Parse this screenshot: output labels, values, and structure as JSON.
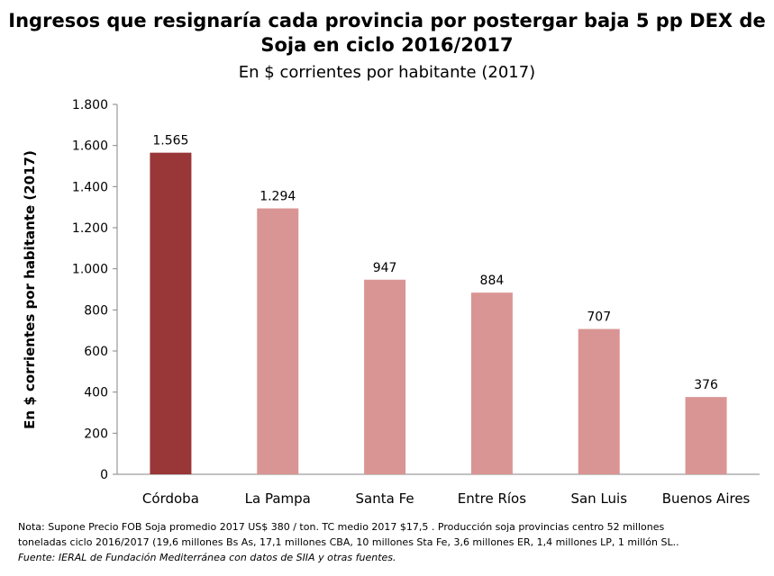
{
  "chart_data": {
    "type": "bar",
    "title_line1": "Ingresos que resignaría cada provincia por postergar baja 5 pp DEX de",
    "title_line2": "Soja en ciclo 2016/2017",
    "subtitle": "En $ corrientes por habitante (2017)",
    "ylabel": "En $ corrientes por habitante (2017)",
    "ylim": [
      0,
      1800
    ],
    "yticks": [
      0,
      200,
      400,
      600,
      800,
      1000,
      1200,
      1400,
      1600,
      1800
    ],
    "ytick_labels": [
      "0",
      "200",
      "400",
      "600",
      "800",
      "1.000",
      "1.200",
      "1.400",
      "1.600",
      "1.800"
    ],
    "categories": [
      "Córdoba",
      "La Pampa",
      "Santa Fe",
      "Entre Ríos",
      "San Luis",
      "Buenos Aires"
    ],
    "values": [
      1565,
      1294,
      947,
      884,
      707,
      376
    ],
    "value_labels": [
      "1.565",
      "1.294",
      "947",
      "884",
      "707",
      "376"
    ],
    "colors": [
      "#983638",
      "#d99594",
      "#d99594",
      "#d99594",
      "#d99594",
      "#d99594"
    ],
    "grid": false
  },
  "footer": {
    "note_line1": "Nota: Supone Precio FOB Soja promedio 2017 US$ 380 / ton. TC medio 2017 $17,5 . Producción soja provincias centro 52 millones",
    "note_line2": "toneladas ciclo 2016/2017 (19,6 millones Bs As, 17,1 millones CBA, 10 millones Sta Fe,  3,6 millones ER, 1,4 millones LP, 1 millón SL..",
    "source": "Fuente: IERAL de Fundación Mediterránea con datos de SIIA y otras fuentes."
  }
}
